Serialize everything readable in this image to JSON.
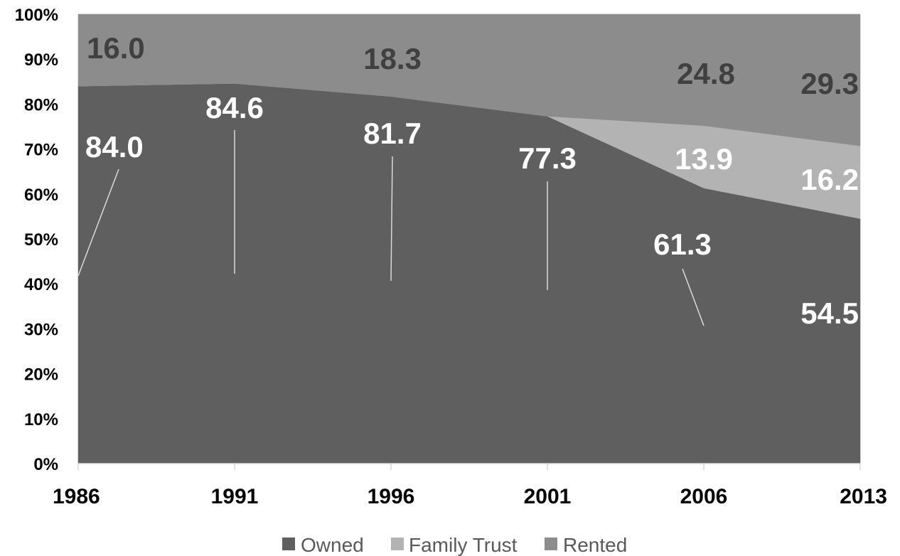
{
  "chart_data": {
    "type": "area",
    "stacked": "percent",
    "categories": [
      "1986",
      "1991",
      "1996",
      "2001",
      "2006",
      "2013"
    ],
    "series": [
      {
        "name": "Owned",
        "values": [
          84.0,
          84.6,
          81.7,
          77.3,
          61.3,
          54.5
        ],
        "labels": [
          "84.0",
          "84.6",
          "81.7",
          "77.3",
          "61.3",
          "54.5"
        ],
        "color": "#5f5f5f"
      },
      {
        "name": "Family Trust",
        "values": [
          0,
          0,
          0,
          0,
          13.9,
          16.2
        ],
        "labels": [
          "",
          "",
          "",
          "",
          "13.9",
          "16.2"
        ],
        "color": "#b3b3b3"
      },
      {
        "name": "Rented",
        "values": [
          16.0,
          15.4,
          18.3,
          22.7,
          24.8,
          29.3
        ],
        "labels": [
          "16.0",
          "",
          "18.3",
          "",
          "24.8",
          "29.3"
        ],
        "color": "#8c8c8c"
      }
    ],
    "y_ticks": [
      "0%",
      "10%",
      "20%",
      "30%",
      "40%",
      "50%",
      "60%",
      "70%",
      "80%",
      "90%",
      "100%"
    ],
    "ylim": [
      0,
      100
    ],
    "grid": false,
    "legend": "bottom",
    "label_colors": {
      "Owned": "#ffffff",
      "Family Trust": "#ffffff",
      "Rented": "#404040"
    }
  }
}
